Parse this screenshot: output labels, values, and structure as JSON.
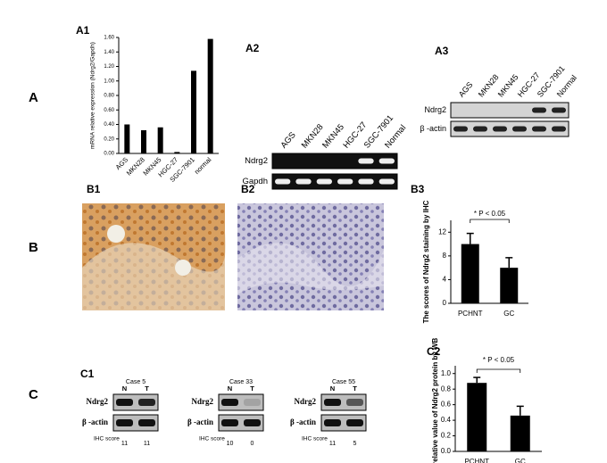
{
  "section_labels": [
    "A",
    "B",
    "C"
  ],
  "chart_data": [
    {
      "type": "bar",
      "panel": "A1",
      "ylabel": "mRNA relative expression (Ndrg2/Gapdh)",
      "categories": [
        "AGS",
        "MKN28",
        "MKN45",
        "HGC-27",
        "SGC-7901",
        "normal"
      ],
      "values": [
        0.4,
        0.32,
        0.36,
        0.02,
        1.14,
        1.58
      ],
      "color": "#000000",
      "ylim": [
        0,
        1.6
      ],
      "yticks": [
        {
          "value": 0,
          "label": "0.00"
        },
        {
          "value": 0.2,
          "label": "0.20"
        },
        {
          "value": 0.4,
          "label": "0.40"
        },
        {
          "value": 0.6,
          "label": "0.60"
        },
        {
          "value": 0.8,
          "label": "0.80"
        },
        {
          "value": 1.0,
          "label": "1.00"
        },
        {
          "value": 1.2,
          "label": "1.20"
        },
        {
          "value": 1.4,
          "label": "1.40"
        },
        {
          "value": 1.6,
          "label": "1.60"
        }
      ]
    },
    {
      "type": "bar",
      "panel": "B3",
      "ylabel": "The scores of Ndrg2 staining by IHC",
      "annotation": "* P < 0.05",
      "categories": [
        "PCHNT",
        "GC"
      ],
      "values": [
        10,
        6
      ],
      "errors": [
        1.8,
        1.7
      ],
      "color": "#000000",
      "ylim": [
        0,
        14
      ],
      "yticks": [
        0,
        4,
        8,
        12
      ]
    },
    {
      "type": "bar",
      "panel": "C2",
      "ylabel": "The relative value of Ndrg2 protein by WB",
      "annotation": "* P < 0.05",
      "categories": [
        "PCHNT",
        "GC"
      ],
      "values": [
        0.88,
        0.46
      ],
      "errors": [
        0.07,
        0.12
      ],
      "color": "#000000",
      "ylim": [
        0,
        1.1
      ],
      "yticks": [
        {
          "value": 0,
          "label": "0.0"
        },
        {
          "value": 0.2,
          "label": "0.2"
        },
        {
          "value": 0.4,
          "label": "0.4"
        },
        {
          "value": 0.6,
          "label": "0.6"
        },
        {
          "value": 0.8,
          "label": "0.8"
        },
        {
          "value": 1.0,
          "label": "1.0"
        }
      ]
    }
  ],
  "gels": [
    {
      "panel": "A2",
      "lanes": [
        "AGS",
        "MKN28",
        "MKN45",
        "HGC-27",
        "SGC-7901",
        "Normal"
      ],
      "rows": [
        "Ndrg2",
        "Gapdh"
      ]
    },
    {
      "panel": "A3",
      "lanes": [
        "AGS",
        "MKN28",
        "MKN45",
        "HGC-27",
        "SGC-7901",
        "Normal"
      ],
      "rows": [
        "Ndrg2",
        "β -actin"
      ]
    }
  ],
  "images": [
    {
      "panel": "B1"
    },
    {
      "panel": "B2"
    }
  ],
  "western": {
    "panel": "C1",
    "rows": [
      "Ndrg2",
      "β -actin"
    ],
    "lanes": [
      "N",
      "T"
    ],
    "score_label": "IHC score",
    "cases": [
      {
        "title": "Case 5",
        "scores": [
          11,
          11
        ]
      },
      {
        "title": "Case 33",
        "scores": [
          10,
          0
        ]
      },
      {
        "title": "Case 55",
        "scores": [
          11,
          5
        ]
      }
    ]
  }
}
